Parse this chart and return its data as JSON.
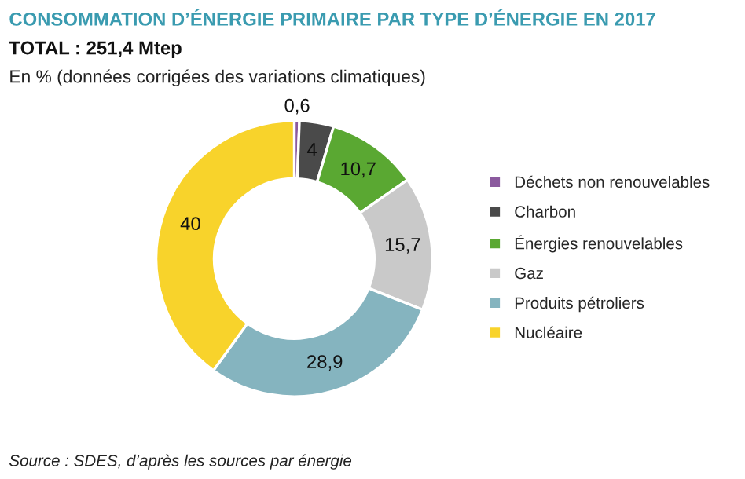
{
  "chart_data": {
    "type": "donut",
    "title": "CONSOMMATION D’ÉNERGIE PRIMAIRE PAR TYPE D’ÉNERGIE EN 2017",
    "subtitle": "TOTAL : 251,4 Mtep",
    "annotations": [
      "En % (données corrigées des variations climatiques)",
      "Source : SDES, d’après les sources par énergie"
    ],
    "categories": [
      "Déchets non renouvelables",
      "Charbon",
      "Énergies renouvelables",
      "Gaz",
      "Produits pétroliers",
      "Nucléaire"
    ],
    "values": [
      0.6,
      4,
      10.7,
      15.7,
      28.9,
      40
    ],
    "value_labels": [
      "0,6",
      "4",
      "10,7",
      "15,7",
      "28,9",
      "40"
    ],
    "colors": [
      "#8b5a9e",
      "#4a4a4a",
      "#5aa832",
      "#c9c9c9",
      "#85b4bf",
      "#f8d32b"
    ],
    "legend": "right"
  }
}
